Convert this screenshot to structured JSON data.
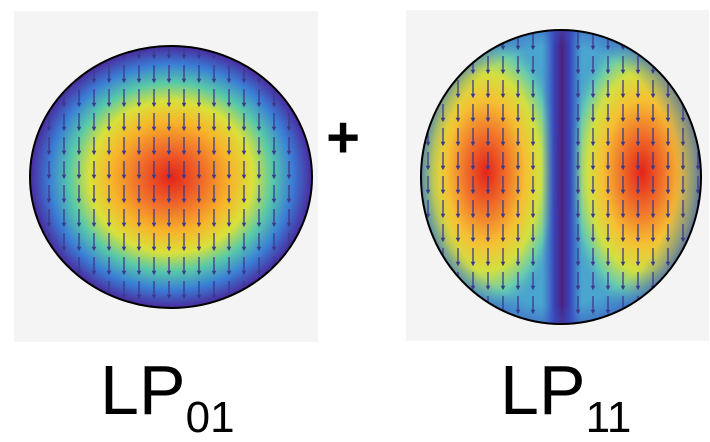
{
  "operator": "+",
  "modes": [
    {
      "label_main": "LP",
      "label_sub": "01",
      "field_direction": "down"
    },
    {
      "label_main": "LP",
      "label_sub": "11",
      "field_direction": "down"
    }
  ],
  "colormap": {
    "hot": "#e3231b",
    "warm": "#f7a51f",
    "mid": "#dfe23e",
    "cool": "#3ec7c0",
    "cold": "#3f5fcf",
    "edge": "#3b1f7a"
  },
  "arrow_color": "#3a3a8c",
  "outline_color": "#000000"
}
